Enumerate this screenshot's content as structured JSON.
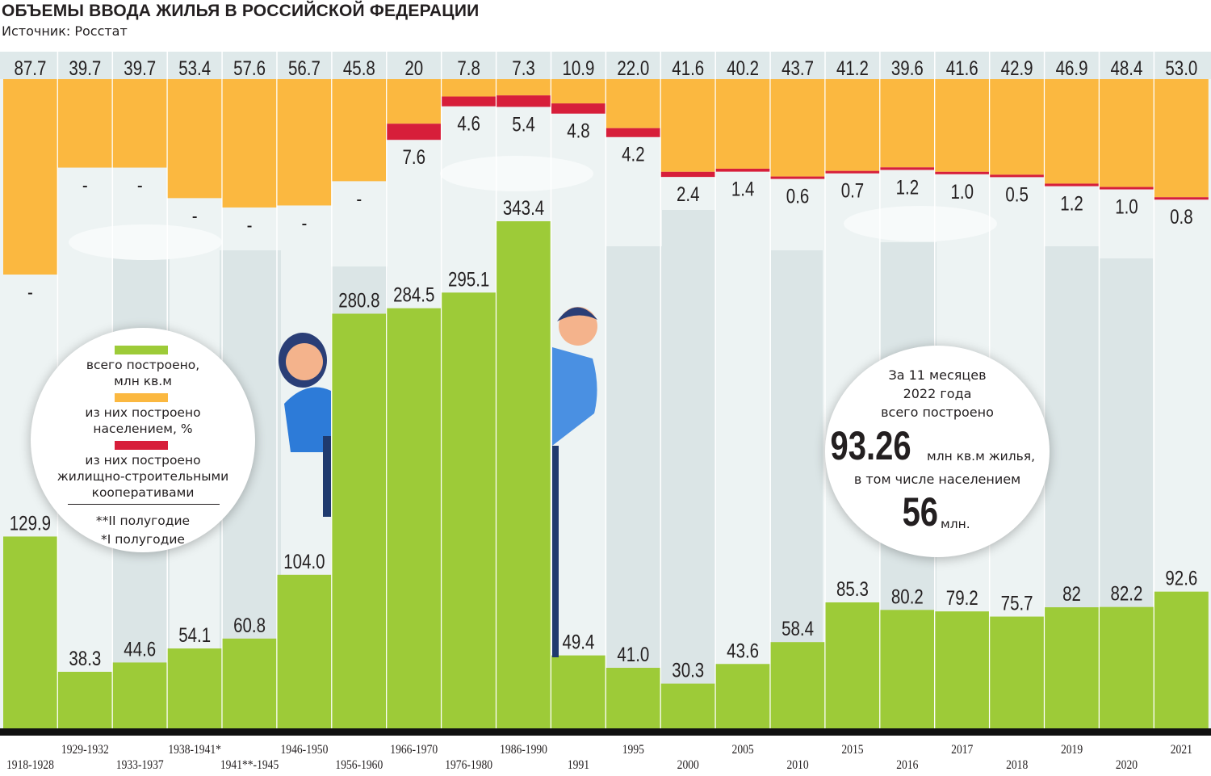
{
  "header": {
    "title": "ОБЪЕМЫ ВВОДА ЖИЛЬЯ В РОССИЙСКОЙ ФЕДЕРАЦИИ",
    "source": "Источник: Росстат"
  },
  "colors": {
    "total": "#9dcb38",
    "population": "#fbb840",
    "coops": "#d71e3a",
    "top_band": "#dfe9ea",
    "background": "#edf3f3",
    "baseline": "#111111"
  },
  "legend": {
    "total": "всего построено, млн кв.м",
    "population": "из них построено населением, %",
    "coops": "из них построено жилищно-строительными кооперативами",
    "note_half2": "**II полугодие",
    "note_half1": "*I полугодие"
  },
  "callout": {
    "line1": "За 11 месяцев",
    "line2": "2022 года",
    "line3": "всего построено",
    "big_value": "93.26",
    "big_unit": "млн кв.м жилья,",
    "line4": "в том числе населением",
    "small_value": "56",
    "small_unit": "млн."
  },
  "chart_data": {
    "type": "bar",
    "categories": [
      "1918-1928",
      "1929-1932",
      "1933-1937",
      "1938-1941*",
      "1941**-1945",
      "1946-1950",
      "1956-1960",
      "1966-1970",
      "1976-1980",
      "1986-1990",
      "1991",
      "1995",
      "2000",
      "2005",
      "2010",
      "2015",
      "2016",
      "2017",
      "2018",
      "2019",
      "2020",
      "2021"
    ],
    "series": [
      {
        "name": "всего построено, млн кв.м",
        "values": [
          129.9,
          38.3,
          44.6,
          54.1,
          60.8,
          104.0,
          280.8,
          284.5,
          295.1,
          343.4,
          49.4,
          41.0,
          30.3,
          43.6,
          58.4,
          85.3,
          80.2,
          79.2,
          75.7,
          82,
          82.2,
          92.6
        ],
        "labels": [
          "129.9",
          "38.3",
          "44.6",
          "54.1",
          "60.8",
          "104.0",
          "280.8",
          "284.5",
          "295.1",
          "343.4",
          "49.4",
          "41.0",
          "30.3",
          "43.6",
          "58.4",
          "85.3",
          "80.2",
          "79.2",
          "75.7",
          "82",
          "82.2",
          "92.6"
        ]
      },
      {
        "name": "из них построено населением, %",
        "values": [
          87.7,
          39.7,
          39.7,
          53.4,
          57.6,
          56.7,
          45.8,
          20,
          7.8,
          7.3,
          10.9,
          22.0,
          41.6,
          40.2,
          43.7,
          41.2,
          39.6,
          41.6,
          42.9,
          46.9,
          48.4,
          53.0
        ],
        "labels": [
          "87.7",
          "39.7",
          "39.7",
          "53.4",
          "57.6",
          "56.7",
          "45.8",
          "20",
          "7.8",
          "7.3",
          "10.9",
          "22.0",
          "41.6",
          "40.2",
          "43.7",
          "41.2",
          "39.6",
          "41.6",
          "42.9",
          "46.9",
          "48.4",
          "53.0"
        ]
      },
      {
        "name": "из них построено жилищно-строительными кооперативами",
        "values": [
          null,
          null,
          null,
          null,
          null,
          null,
          null,
          7.6,
          4.6,
          5.4,
          4.8,
          4.2,
          2.4,
          1.4,
          0.6,
          0.7,
          1.2,
          1.0,
          0.5,
          1.2,
          1.0,
          0.8
        ],
        "labels": [
          "-",
          "-",
          "-",
          "-",
          "-",
          "-",
          "-",
          "7.6",
          "4.6",
          "5.4",
          "4.8",
          "4.2",
          "2.4",
          "1.4",
          "0.6",
          "0.7",
          "1.2",
          "1.0",
          "0.5",
          "1.2",
          "1.0",
          "0.8"
        ]
      }
    ],
    "ylim_total": [
      0,
      400
    ],
    "ylim_percent": [
      0,
      100
    ],
    "legend_position": "left"
  }
}
